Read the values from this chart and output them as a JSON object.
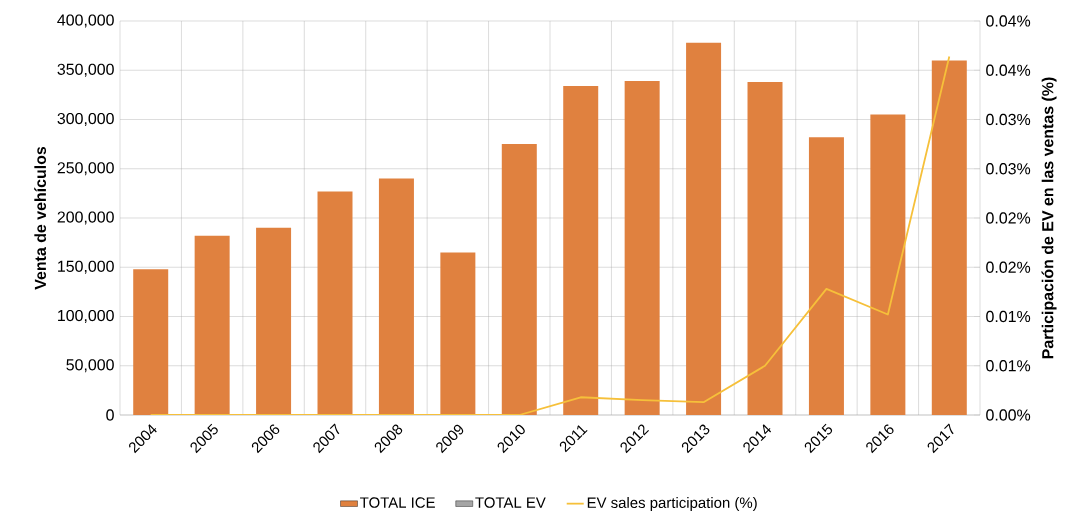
{
  "chart_data": {
    "type": "bar",
    "stacked": true,
    "categories": [
      "2004",
      "2005",
      "2006",
      "2007",
      "2008",
      "2009",
      "2010",
      "2011",
      "2012",
      "2013",
      "2014",
      "2015",
      "2016",
      "2017"
    ],
    "series": [
      {
        "name": "TOTAL ICE",
        "color": "#e0813f",
        "values": [
          148000,
          182000,
          190000,
          227000,
          240000,
          165000,
          275000,
          334000,
          339000,
          378000,
          338000,
          282000,
          305000,
          360000
        ]
      },
      {
        "name": "TOTAL EV",
        "color": "#a5a5a5",
        "values": [
          null,
          null,
          null,
          null,
          null,
          null,
          null,
          null,
          null,
          null,
          null,
          null,
          null,
          null
        ]
      },
      {
        "name": "EV sales participation (%)",
        "type": "line",
        "axis": "y2",
        "color": "#f6c03a",
        "values": [
          0,
          0,
          0,
          0,
          0,
          0,
          0,
          0.0018,
          0.0015,
          0.0013,
          0.005,
          0.0128,
          0.0102,
          0.0364
        ]
      }
    ],
    "ylabel": "Venta de vehículos",
    "y2label": "Participación de EV en las ventas (%)",
    "ylim": [
      0,
      400000
    ],
    "yticks": [
      0,
      {
        "value": 50000,
        "label": "50,000"
      },
      {
        "value": 100000,
        "label": "100,000"
      },
      {
        "value": 150000,
        "label": "150,000"
      },
      {
        "value": 200000,
        "label": "200,000"
      },
      {
        "value": 250000,
        "label": "250,000"
      },
      {
        "value": 300000,
        "label": "300,000"
      },
      {
        "value": 350000,
        "label": "350,000"
      },
      {
        "value": 400000,
        "label": "400,000"
      }
    ],
    "y2lim": [
      0,
      0.04
    ],
    "y2ticks": [
      {
        "value": 0,
        "label": "0.00%"
      },
      {
        "value": 0.005,
        "label": "0.01%"
      },
      {
        "value": 0.01,
        "label": "0.01%"
      },
      {
        "value": 0.015,
        "label": "0.02%"
      },
      {
        "value": 0.02,
        "label": "0.02%"
      },
      {
        "value": 0.025,
        "label": "0.03%"
      },
      {
        "value": 0.03,
        "label": "0.03%"
      },
      {
        "value": 0.035,
        "label": "0.04%"
      },
      {
        "value": 0.04,
        "label": "0.04%"
      }
    ],
    "grid": true,
    "legend": "bottom",
    "marker": "none",
    "line_style": "solid"
  }
}
